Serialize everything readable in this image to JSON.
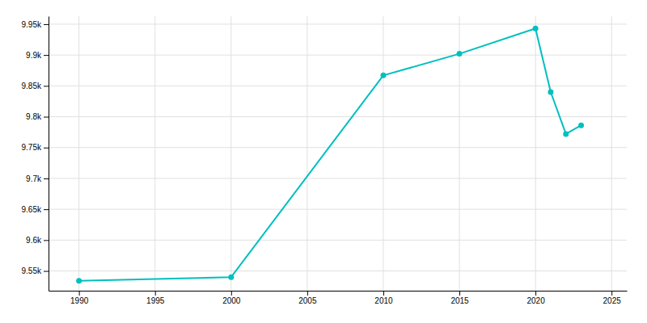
{
  "chart_data": {
    "type": "line",
    "x": [
      1990,
      2000,
      2010,
      2015,
      2020,
      2021,
      2022,
      2023
    ],
    "values": [
      9534,
      9540,
      9867,
      9902,
      9943,
      9840,
      9772,
      9786
    ],
    "color": "#00BFBF",
    "marker": "circle",
    "xlim": [
      1988,
      2026
    ],
    "ylim": [
      9518,
      9963
    ],
    "xticks": [
      1990,
      1995,
      2000,
      2005,
      2010,
      2015,
      2020,
      2025
    ],
    "yticks": [
      {
        "value": 9550,
        "label": "9.55k"
      },
      {
        "value": 9600,
        "label": "9.6k"
      },
      {
        "value": 9650,
        "label": "9.65k"
      },
      {
        "value": 9700,
        "label": "9.7k"
      },
      {
        "value": 9750,
        "label": "9.75k"
      },
      {
        "value": 9800,
        "label": "9.8k"
      },
      {
        "value": 9850,
        "label": "9.85k"
      },
      {
        "value": 9900,
        "label": "9.9k"
      },
      {
        "value": 9950,
        "label": "9.95k"
      }
    ],
    "grid": true
  }
}
